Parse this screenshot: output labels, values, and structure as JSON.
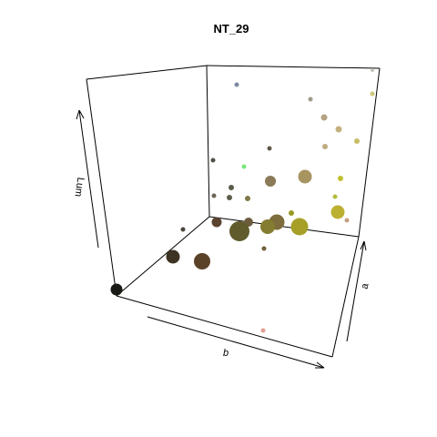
{
  "chart_data": {
    "type": "scatter",
    "title": "NT_29",
    "xlabel": "b",
    "ylabel": "a",
    "zlabel": "Lum",
    "points": [
      {
        "sx": 128,
        "sy": 318,
        "r": 6.5,
        "color": "#1a1a14"
      },
      {
        "sx": 190,
        "sy": 282,
        "r": 7.5,
        "color": "#3e3424"
      },
      {
        "sx": 222,
        "sy": 287,
        "r": 9,
        "color": "#5a4228"
      },
      {
        "sx": 263,
        "sy": 254,
        "r": 11,
        "color": "#605c2c"
      },
      {
        "sx": 273,
        "sy": 244,
        "r": 5,
        "color": "#6e5c3e"
      },
      {
        "sx": 238,
        "sy": 244,
        "r": 5.5,
        "color": "#5a4430"
      },
      {
        "sx": 294,
        "sy": 249,
        "r": 8,
        "color": "#847c30"
      },
      {
        "sx": 304,
        "sy": 244,
        "r": 8.5,
        "color": "#7e6c3c"
      },
      {
        "sx": 329,
        "sy": 249,
        "r": 9.5,
        "color": "#a6a028"
      },
      {
        "sx": 290,
        "sy": 273,
        "r": 2.5,
        "color": "#6e5c3a"
      },
      {
        "sx": 201,
        "sy": 252,
        "r": 2.5,
        "color": "#4a443a"
      },
      {
        "sx": 252,
        "sy": 217,
        "r": 3,
        "color": "#5e5c4c"
      },
      {
        "sx": 272,
        "sy": 218,
        "r": 3,
        "color": "#807848"
      },
      {
        "sx": 235,
        "sy": 215,
        "r": 2.5,
        "color": "#6a6456"
      },
      {
        "sx": 254,
        "sy": 206,
        "r": 3,
        "color": "#5c5a4a"
      },
      {
        "sx": 297,
        "sy": 199,
        "r": 6,
        "color": "#8a7a58"
      },
      {
        "sx": 335,
        "sy": 194,
        "r": 7.5,
        "color": "#a89460"
      },
      {
        "sx": 320,
        "sy": 234,
        "r": 3,
        "color": "#9a9c24"
      },
      {
        "sx": 371,
        "sy": 233,
        "r": 7.5,
        "color": "#bcb032"
      },
      {
        "sx": 368,
        "sy": 216,
        "r": 2.5,
        "color": "#b4bc3c"
      },
      {
        "sx": 374,
        "sy": 196,
        "r": 3,
        "color": "#c0c030"
      },
      {
        "sx": 381,
        "sy": 242,
        "r": 2.5,
        "color": "#c4a084"
      },
      {
        "sx": 268,
        "sy": 183,
        "r": 2.5,
        "color": "#7ae87a"
      },
      {
        "sx": 234,
        "sy": 176,
        "r": 2.5,
        "color": "#4c5046"
      },
      {
        "sx": 296,
        "sy": 163,
        "r": 2.5,
        "color": "#5e5a48"
      },
      {
        "sx": 357,
        "sy": 161,
        "r": 3,
        "color": "#c0ac80"
      },
      {
        "sx": 392,
        "sy": 155,
        "r": 3,
        "color": "#c8be66"
      },
      {
        "sx": 356,
        "sy": 129,
        "r": 3.5,
        "color": "#b4a282"
      },
      {
        "sx": 372,
        "sy": 142,
        "r": 3.5,
        "color": "#c4b07c"
      },
      {
        "sx": 341,
        "sy": 109,
        "r": 2.5,
        "color": "#a09c8e"
      },
      {
        "sx": 260,
        "sy": 93,
        "r": 2.5,
        "color": "#7c8ca4"
      },
      {
        "sx": 409,
        "sy": 103,
        "r": 2.5,
        "color": "#cec67a"
      },
      {
        "sx": 409,
        "sy": 77,
        "r": 2,
        "color": "#c4c4bc"
      },
      {
        "sx": 289,
        "sy": 363,
        "r": 2.5,
        "color": "#e0a094"
      }
    ]
  }
}
